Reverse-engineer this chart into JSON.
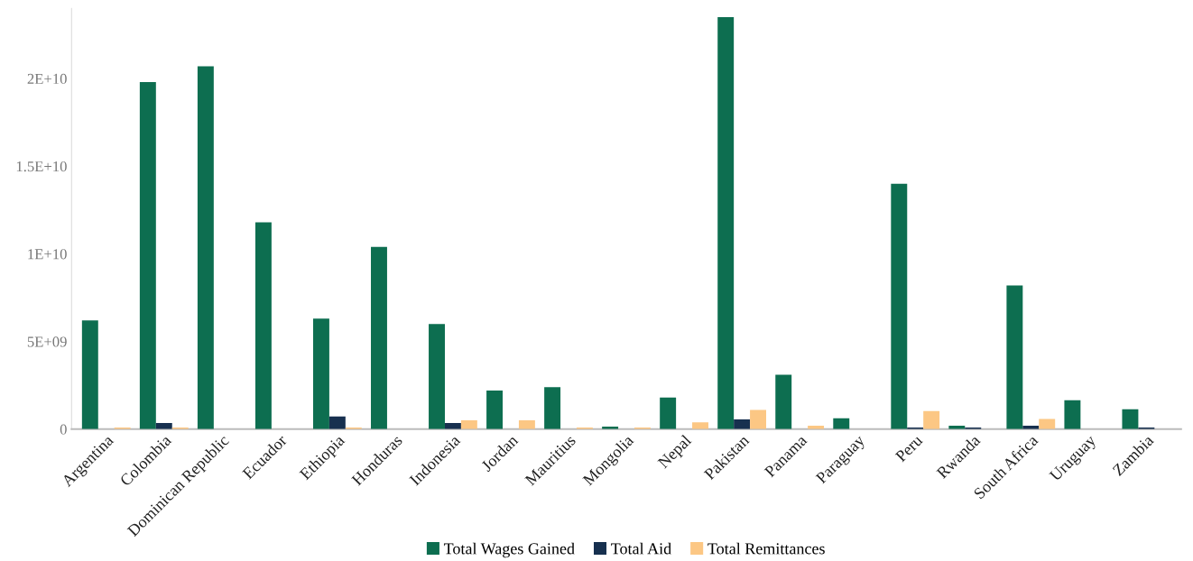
{
  "chart_data": {
    "type": "bar",
    "categories": [
      "Argentina",
      "Colombia",
      "Dominican Republic",
      "Ecuador",
      "Ethiopia",
      "Honduras",
      "Indonesia",
      "Jordan",
      "Mauritius",
      "Mongolia",
      "Nepal",
      "Pakistan",
      "Panama",
      "Paraguay",
      "Peru",
      "Rwanda",
      "South Africa",
      "Uruguay",
      "Zambia"
    ],
    "series": [
      {
        "name": "Total Wages Gained",
        "color": "#0d6e50",
        "values": [
          6200000000.0,
          19800000000.0,
          20700000000.0,
          11800000000.0,
          6300000000.0,
          10400000000.0,
          6000000000.0,
          2200000000.0,
          2400000000.0,
          150000000.0,
          1800000000.0,
          23500000000.0,
          3100000000.0,
          620000000.0,
          14000000000.0,
          200000000.0,
          8200000000.0,
          1650000000.0,
          1130000000.0
        ]
      },
      {
        "name": "Total Aid",
        "color": "#17304f",
        "values": [
          null,
          350000000.0,
          null,
          null,
          720000000.0,
          null,
          350000000.0,
          null,
          null,
          null,
          null,
          560000000.0,
          null,
          null,
          100000000.0,
          100000000.0,
          200000000.0,
          null,
          100000000.0
        ]
      },
      {
        "name": "Total Remittances",
        "color": "#fcc784",
        "values": [
          100000000.0,
          100000000.0,
          null,
          null,
          100000000.0,
          null,
          500000000.0,
          500000000.0,
          100000000.0,
          100000000.0,
          390000000.0,
          1100000000.0,
          200000000.0,
          null,
          1030000000.0,
          null,
          580000000.0,
          null,
          null
        ]
      }
    ],
    "ylim": [
      0,
      24000000000.0
    ],
    "yticks": [
      0,
      {
        "value": 5000000000.0,
        "label": "5E+09"
      },
      {
        "value": 10000000000.0,
        "label": "1E+10"
      },
      {
        "value": 15000000000.0,
        "label": "1.5E+10"
      },
      {
        "value": 20000000000.0,
        "label": "2E+10"
      }
    ],
    "grid": false,
    "legend": "bottom"
  }
}
